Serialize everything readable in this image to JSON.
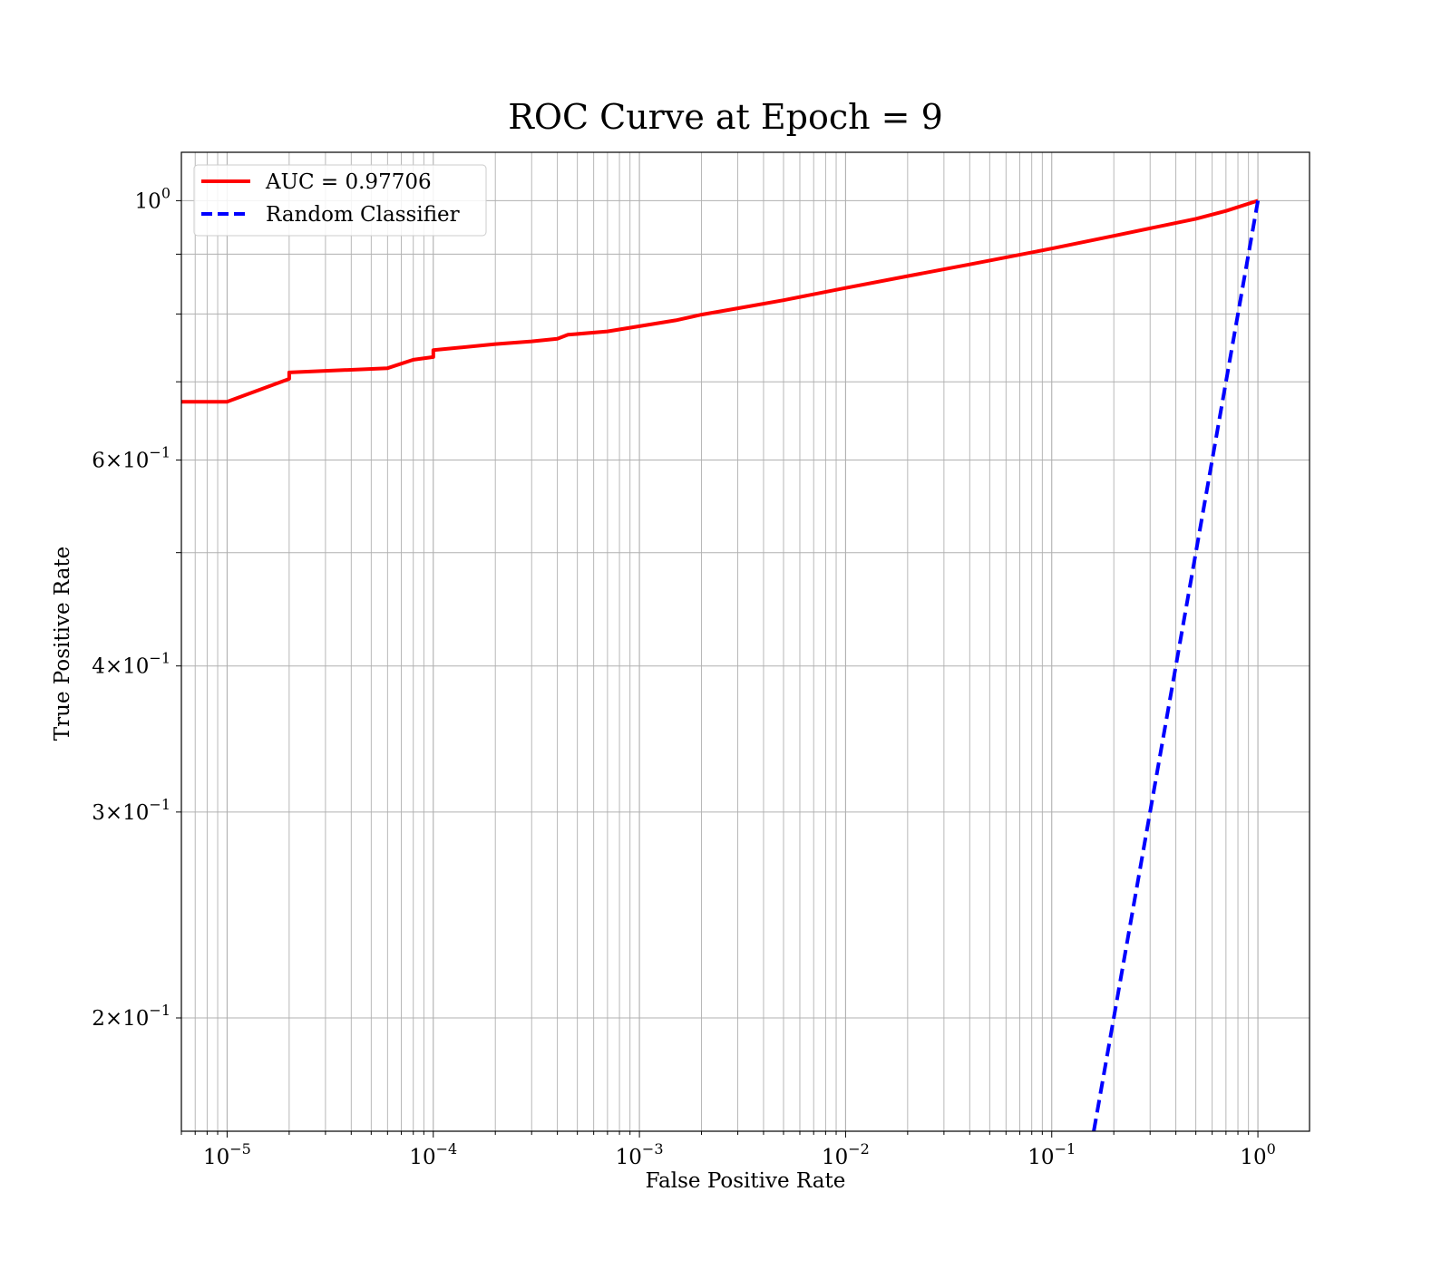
{
  "chart_data": {
    "type": "line",
    "title": "ROC Curve at Epoch = 9",
    "xlabel": "False Positive Rate",
    "ylabel": "True Positive Rate",
    "xscale": "log",
    "yscale": "log",
    "xlim": [
      6e-06,
      1.78
    ],
    "ylim": [
      0.16,
      1.1
    ],
    "grid": "both-major-and-minor",
    "legend_position": "top-left",
    "x_ticks": [
      {
        "value": 1e-05,
        "base": "10",
        "exp": "−5"
      },
      {
        "value": 0.0001,
        "base": "10",
        "exp": "−4"
      },
      {
        "value": 0.001,
        "base": "10",
        "exp": "−3"
      },
      {
        "value": 0.01,
        "base": "10",
        "exp": "−2"
      },
      {
        "value": 0.1,
        "base": "10",
        "exp": "−1"
      },
      {
        "value": 1,
        "base": "10",
        "exp": "0"
      }
    ],
    "y_ticks": [
      {
        "value": 1.0,
        "base": "10",
        "exp": "0",
        "mult": ""
      },
      {
        "value": 0.6,
        "base": "10",
        "exp": "−1",
        "mult": "6×"
      },
      {
        "value": 0.4,
        "base": "10",
        "exp": "−1",
        "mult": "4×"
      },
      {
        "value": 0.3,
        "base": "10",
        "exp": "−1",
        "mult": "3×"
      },
      {
        "value": 0.2,
        "base": "10",
        "exp": "−1",
        "mult": "2×"
      }
    ],
    "series": [
      {
        "name": "AUC = 0.97706",
        "color": "#ff0000",
        "style": "solid",
        "x": [
          6e-06,
          1e-05,
          2e-05,
          2e-05,
          6e-05,
          8e-05,
          0.0001,
          0.0001,
          0.0002,
          0.0003,
          0.0004,
          0.00045,
          0.0007,
          0.001,
          0.0015,
          0.002,
          0.003,
          0.005,
          0.01,
          0.02,
          0.04,
          0.1,
          0.2,
          0.5,
          0.7,
          1.0
        ],
        "y": [
          0.673,
          0.673,
          0.704,
          0.713,
          0.719,
          0.731,
          0.735,
          0.745,
          0.754,
          0.758,
          0.762,
          0.768,
          0.773,
          0.781,
          0.79,
          0.799,
          0.809,
          0.822,
          0.842,
          0.862,
          0.882,
          0.91,
          0.933,
          0.965,
          0.98,
          1.0
        ]
      },
      {
        "name": "Random Classifier",
        "color": "#0000ff",
        "style": "dashed",
        "x": [
          0.16,
          1.0
        ],
        "y": [
          0.16,
          1.0
        ]
      }
    ]
  }
}
